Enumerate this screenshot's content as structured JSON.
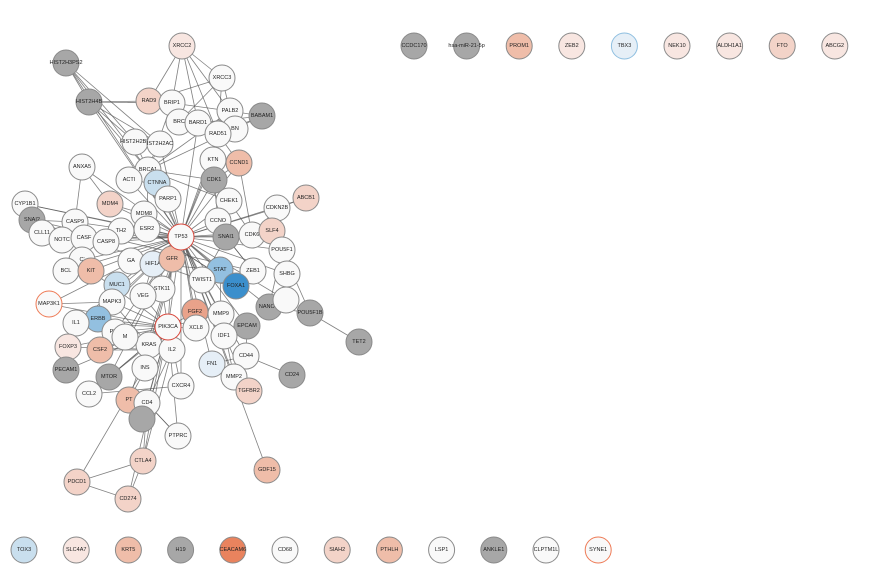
{
  "colors": {
    "blue_dark": "#3b8fcc",
    "blue_mid": "#93c0e0",
    "blue_light": "#c9dfee",
    "blue_pale": "#e6eff7",
    "white": "#f9f9f9",
    "pink_pale": "#f8e6e1",
    "pink_light": "#f3d3c8",
    "salmon": "#efbda9",
    "salmon_dark": "#e9a28a",
    "orange": "#e9835e",
    "gray": "#a7a7a7",
    "stroke_default": "#8a8a8a",
    "stroke_highlight": "#d8463a",
    "stroke_orange": "#ee7a55",
    "stroke_blue": "#8fbfe0"
  },
  "nodes": [
    {
      "id": "XRCC2",
      "label": "XRCC2",
      "fill": "pink_pale"
    },
    {
      "id": "XRCC3",
      "label": "XRCC3",
      "fill": "white"
    },
    {
      "id": "HIST2H3PS2",
      "label": "HIST2H3PS2",
      "fill": "gray"
    },
    {
      "id": "HIST2H4B",
      "label": "HIST2H4B",
      "fill": "gray"
    },
    {
      "id": "RAD9",
      "label": "RAD9",
      "fill": "pink_light"
    },
    {
      "id": "BRIP1",
      "label": "BRIP1",
      "fill": "white"
    },
    {
      "id": "PALB2",
      "label": "PALB2",
      "fill": "white"
    },
    {
      "id": "BABAM1",
      "label": "BABAM1",
      "fill": "gray"
    },
    {
      "id": "BRC",
      "label": "BRC",
      "fill": "white"
    },
    {
      "id": "BARD1",
      "label": "BARD1",
      "fill": "white"
    },
    {
      "id": "BN",
      "label": "BN",
      "fill": "white"
    },
    {
      "id": "RAD51",
      "label": "RAD51",
      "fill": "white"
    },
    {
      "id": "HIST2H2BE",
      "label": "HIST2H2BE",
      "fill": "white"
    },
    {
      "id": "HIST2H2AC",
      "label": "IST2H2AC",
      "fill": "white"
    },
    {
      "id": "CCND1",
      "label": "CCND1",
      "fill": "salmon"
    },
    {
      "id": "ANXA5",
      "label": "ANXA5",
      "fill": "white"
    },
    {
      "id": "BRCA1",
      "label": "BRCA1",
      "fill": "white"
    },
    {
      "id": "KTN",
      "label": "KTN",
      "fill": "white"
    },
    {
      "id": "ACTI",
      "label": "ACTI",
      "fill": "white"
    },
    {
      "id": "CTNNA",
      "label": "CTNNA",
      "fill": "blue_light"
    },
    {
      "id": "CDK1",
      "label": "CDK1",
      "fill": "gray"
    },
    {
      "id": "ABCB1",
      "label": "ABCB1",
      "fill": "pink_light"
    },
    {
      "id": "CYP1B1",
      "label": "CYP1B1",
      "fill": "white"
    },
    {
      "id": "SNAI2",
      "label": "SNAI2",
      "fill": "gray"
    },
    {
      "id": "MDM4",
      "label": "MDM4",
      "fill": "pink_light"
    },
    {
      "id": "PARP1",
      "label": "PARP1",
      "fill": "white"
    },
    {
      "id": "CHEK1",
      "label": "CHEK1",
      "fill": "white"
    },
    {
      "id": "CDKN2B",
      "label": "CDKN2B",
      "fill": "white"
    },
    {
      "id": "CASP9",
      "label": "CASP9",
      "fill": "white"
    },
    {
      "id": "MDM8",
      "label": "MDM8",
      "fill": "white"
    },
    {
      "id": "CCNO",
      "label": "CCNO",
      "fill": "white"
    },
    {
      "id": "CLL11",
      "label": "CLL11",
      "fill": "white"
    },
    {
      "id": "NOTC",
      "label": "NOTC",
      "fill": "white"
    },
    {
      "id": "CASF",
      "label": "CASF",
      "fill": "white"
    },
    {
      "id": "TH2",
      "label": "TH2",
      "fill": "white"
    },
    {
      "id": "ESR2",
      "label": "ESR2",
      "fill": "white"
    },
    {
      "id": "TP53",
      "label": "TP53",
      "fill": "white",
      "stroke": "stroke_highlight",
      "thick": true
    },
    {
      "id": "SNAI1",
      "label": "SNAI1",
      "fill": "gray"
    },
    {
      "id": "CDK6",
      "label": "CDK6",
      "fill": "white"
    },
    {
      "id": "SLF4",
      "label": "SLF4",
      "fill": "pink_light"
    },
    {
      "id": "POU5F1",
      "label": "POU5F1",
      "fill": "white"
    },
    {
      "id": "CASP8",
      "label": "CASP8",
      "fill": "white"
    },
    {
      "id": "C1",
      "label": "C'",
      "fill": "white"
    },
    {
      "id": "BCL",
      "label": "BCL",
      "fill": "white"
    },
    {
      "id": "GA",
      "label": "GA",
      "fill": "white"
    },
    {
      "id": "HIF1A",
      "label": "HIF1A",
      "fill": "blue_pale"
    },
    {
      "id": "GFR",
      "label": "GFR",
      "fill": "salmon"
    },
    {
      "id": "STAT",
      "label": "STAT",
      "fill": "blue_mid"
    },
    {
      "id": "ZEB1",
      "label": "ZEB1",
      "fill": "white"
    },
    {
      "id": "SHBG",
      "label": "SHBG",
      "fill": "white"
    },
    {
      "id": "KIT",
      "label": "KIT",
      "fill": "salmon"
    },
    {
      "id": "MUC1",
      "label": "MUC1",
      "fill": "blue_light"
    },
    {
      "id": "TWIST1",
      "label": "TWIST1",
      "fill": "white"
    },
    {
      "id": "FOXA1",
      "label": "FOXA1",
      "fill": "blue_dark"
    },
    {
      "id": "STK11",
      "label": "STK11",
      "fill": "white"
    },
    {
      "id": "MAPK3",
      "label": "MAPK3",
      "fill": "white"
    },
    {
      "id": "VEG",
      "label": "VEG",
      "fill": "white"
    },
    {
      "id": "MAP3K1",
      "label": "MAP3K1",
      "fill": "white",
      "stroke": "stroke_orange",
      "thick": true
    },
    {
      "id": "NANOG",
      "label": "NANOG",
      "fill": "gray"
    },
    {
      "id": "POU5F1B",
      "label": "POU5F1B",
      "fill": "gray"
    },
    {
      "id": "ERBB",
      "label": "ERBB",
      "fill": "blue_mid"
    },
    {
      "id": "FGF2",
      "label": "FGF2",
      "fill": "salmon_dark"
    },
    {
      "id": "MMP9",
      "label": "MMP9",
      "fill": "white"
    },
    {
      "id": "IL1",
      "label": "IL1",
      "fill": "white"
    },
    {
      "id": "PIK3CA",
      "label": "PIK3CA",
      "fill": "white",
      "stroke": "stroke_highlight",
      "thick": true
    },
    {
      "id": "CXCL8",
      "label": "XCL8",
      "fill": "white"
    },
    {
      "id": "EPCAM",
      "label": "EPCAM",
      "fill": "gray"
    },
    {
      "id": "TET2",
      "label": "TET2",
      "fill": "gray"
    },
    {
      "id": "PTK",
      "label": "PTK",
      "fill": "white"
    },
    {
      "id": "IDF1",
      "label": "IDF1",
      "fill": "white"
    },
    {
      "id": "FOXP3",
      "label": "FOXP3",
      "fill": "pink_pale"
    },
    {
      "id": "CSF2",
      "label": "CSF2",
      "fill": "salmon"
    },
    {
      "id": "KRAS",
      "label": "KRAS",
      "fill": "white"
    },
    {
      "id": "IL2",
      "label": "IL2",
      "fill": "white"
    },
    {
      "id": "FN1",
      "label": "FN1",
      "fill": "blue_pale"
    },
    {
      "id": "CD44",
      "label": "CD44",
      "fill": "white"
    },
    {
      "id": "MMP2",
      "label": "MMP2",
      "fill": "white"
    },
    {
      "id": "CD24",
      "label": "CD24",
      "fill": "gray"
    },
    {
      "id": "PECAM1",
      "label": "PECAM1",
      "fill": "gray"
    },
    {
      "id": "MTOR",
      "label": "MTOR",
      "fill": "gray"
    },
    {
      "id": "INS",
      "label": "INS",
      "fill": "white"
    },
    {
      "id": "CXCR4",
      "label": "CXCR4",
      "fill": "white"
    },
    {
      "id": "TGFBR2",
      "label": "TGFBR2",
      "fill": "pink_light"
    },
    {
      "id": "CCL2",
      "label": "CCL2",
      "fill": "white"
    },
    {
      "id": "PTEN",
      "label": "PT",
      "fill": "salmon"
    },
    {
      "id": "CD4",
      "label": "CD4",
      "fill": "white"
    },
    {
      "id": "GRAY_LOW",
      "label": "",
      "fill": "gray"
    },
    {
      "id": "PTPRC",
      "label": "PTPRC",
      "fill": "white"
    },
    {
      "id": "CTLA4",
      "label": "CTLA4",
      "fill": "pink_light"
    },
    {
      "id": "GDF15",
      "label": "GDF15",
      "fill": "salmon"
    },
    {
      "id": "PDCD1",
      "label": "PDCD1",
      "fill": "pink_light"
    },
    {
      "id": "CD274",
      "label": "CD274",
      "fill": "pink_light"
    },
    {
      "id": "M2",
      "label": "M",
      "fill": "white"
    },
    {
      "id": "SG",
      "label": "",
      "fill": "white"
    }
  ],
  "edges": [
    [
      "XRCC2",
      "XRCC3"
    ],
    [
      "XRCC2",
      "RAD9"
    ],
    [
      "XRCC2",
      "BRIP1"
    ],
    [
      "XRCC2",
      "PALB2"
    ],
    [
      "XRCC2",
      "BARD1"
    ],
    [
      "XRCC2",
      "RAD51"
    ],
    [
      "XRCC3",
      "RAD9"
    ],
    [
      "XRCC3",
      "PALB2"
    ],
    [
      "XRCC3",
      "RAD51"
    ],
    [
      "XRCC3",
      "BRC"
    ],
    [
      "HIST2H3PS2",
      "HIST2H4B"
    ],
    [
      "HIST2H3PS2",
      "HIST2H2BE"
    ],
    [
      "HIST2H3PS2",
      "BRCA1"
    ],
    [
      "HIST2H3PS2",
      "TP53"
    ],
    [
      "HIST2H3PS2",
      "HIST2H2AC"
    ],
    [
      "HIST2H4B",
      "HIST2H2BE"
    ],
    [
      "HIST2H4B",
      "BRCA1"
    ],
    [
      "HIST2H4B",
      "HIST2H2AC"
    ],
    [
      "HIST2H4B",
      "RAD9"
    ],
    [
      "HIST2H4B",
      "BRIP1"
    ],
    [
      "HIST2H4B",
      "TP53"
    ],
    [
      "RAD9",
      "BRIP1"
    ],
    [
      "RAD9",
      "BRC"
    ],
    [
      "BRIP1",
      "PALB2"
    ],
    [
      "BRIP1",
      "BARD1"
    ],
    [
      "BRIP1",
      "RAD51"
    ],
    [
      "BRIP1",
      "BRCA1"
    ],
    [
      "PALB2",
      "BABAM1"
    ],
    [
      "PALB2",
      "RAD51"
    ],
    [
      "PALB2",
      "BN"
    ],
    [
      "PALB2",
      "BRCA1"
    ],
    [
      "PALB2",
      "TP53"
    ],
    [
      "BABAM1",
      "BARD1"
    ],
    [
      "BABAM1",
      "BRCA1"
    ],
    [
      "BABAM1",
      "RAD51"
    ],
    [
      "BRC",
      "BARD1"
    ],
    [
      "BRC",
      "RAD51"
    ],
    [
      "BARD1",
      "RAD51"
    ],
    [
      "BARD1",
      "BN"
    ],
    [
      "BARD1",
      "TP53"
    ],
    [
      "RAD51",
      "TP53"
    ],
    [
      "RAD51",
      "CDK1"
    ],
    [
      "RAD51",
      "CCND1"
    ],
    [
      "HIST2H2BE",
      "HIST2H2AC"
    ],
    [
      "HIST2H2BE",
      "BRCA1"
    ],
    [
      "HIST2H2AC",
      "BRCA1"
    ],
    [
      "HIST2H2AC",
      "TP53"
    ],
    [
      "BRCA1",
      "TP53"
    ],
    [
      "BRCA1",
      "PARP1"
    ],
    [
      "BRCA1",
      "ESR2"
    ],
    [
      "BRCA1",
      "CHEK1"
    ],
    [
      "BRCA1",
      "CDK1"
    ],
    [
      "BRCA1",
      "ACTI"
    ],
    [
      "ANXA5",
      "CASP9"
    ],
    [
      "ANXA5",
      "TP53"
    ],
    [
      "ANXA5",
      "MDM4"
    ],
    [
      "KTN",
      "TP53"
    ],
    [
      "KTN",
      "CDK1"
    ],
    [
      "CTNNA",
      "TP53"
    ],
    [
      "ACTI",
      "TP53"
    ],
    [
      "ACTI",
      "CTNNA"
    ],
    [
      "CCND1",
      "TP53"
    ],
    [
      "CCND1",
      "CDK6"
    ],
    [
      "CCND1",
      "CDK1"
    ],
    [
      "CDK1",
      "CHEK1"
    ],
    [
      "CDK1",
      "TP53"
    ],
    [
      "CDK1",
      "CCNO"
    ],
    [
      "ABCB1",
      "TP53"
    ],
    [
      "ABCB1",
      "CDKN2B"
    ],
    [
      "CDKN2B",
      "CDK6"
    ],
    [
      "CDKN2B",
      "TP53"
    ],
    [
      "CHEK1",
      "TP53"
    ],
    [
      "CHEK1",
      "CDK6"
    ],
    [
      "CYP1B1",
      "TP53"
    ],
    [
      "CYP1B1",
      "ESR2"
    ],
    [
      "SNAI2",
      "CASP9"
    ],
    [
      "SNAI2",
      "TWIST1"
    ],
    [
      "SNAI2",
      "ZEB1"
    ],
    [
      "MDM4",
      "TP53"
    ],
    [
      "MDM4",
      "MDM8"
    ],
    [
      "PARP1",
      "TP53"
    ],
    [
      "CASP9",
      "TP53"
    ],
    [
      "CASP9",
      "CASP8"
    ],
    [
      "MDM8",
      "TP53"
    ],
    [
      "CCNO",
      "TP53"
    ],
    [
      "CLL11",
      "TP53"
    ],
    [
      "NOTC",
      "TP53"
    ],
    [
      "CASF",
      "TP53"
    ],
    [
      "TH2",
      "TP53"
    ],
    [
      "ESR2",
      "TP53"
    ],
    [
      "ESR2",
      "FOXA1"
    ],
    [
      "SNAI1",
      "TP53"
    ],
    [
      "SNAI1",
      "ZEB1"
    ],
    [
      "SNAI1",
      "TWIST1"
    ],
    [
      "CDK6",
      "TP53"
    ],
    [
      "SLF4",
      "TP53"
    ],
    [
      "SLF4",
      "POU5F1"
    ],
    [
      "POU5F1",
      "NANOG"
    ],
    [
      "POU5F1",
      "TP53"
    ],
    [
      "POU5F1",
      "SHBG"
    ],
    [
      "CASP8",
      "TP53"
    ],
    [
      "C1",
      "TP53"
    ],
    [
      "BCL",
      "TP53"
    ],
    [
      "GA",
      "TP53"
    ],
    [
      "HIF1A",
      "TP53"
    ],
    [
      "HIF1A",
      "VEG"
    ],
    [
      "HIF1A",
      "STAT"
    ],
    [
      "GFR",
      "TP53"
    ],
    [
      "GFR",
      "PIK3CA"
    ],
    [
      "STAT",
      "TP53"
    ],
    [
      "STAT",
      "FOXA1"
    ],
    [
      "ZEB1",
      "TWIST1"
    ],
    [
      "ZEB1",
      "SNAI1"
    ],
    [
      "SHBG",
      "TP53"
    ],
    [
      "KIT",
      "TP53"
    ],
    [
      "KIT",
      "PIK3CA"
    ],
    [
      "MUC1",
      "TP53"
    ],
    [
      "MUC1",
      "ERBB"
    ],
    [
      "TWIST1",
      "TP53"
    ],
    [
      "TWIST1",
      "MMP9"
    ],
    [
      "FOXA1",
      "TP53"
    ],
    [
      "FOXA1",
      "ESR2"
    ],
    [
      "STK11",
      "TP53"
    ],
    [
      "STK11",
      "PIK3CA"
    ],
    [
      "MAPK3",
      "TP53"
    ],
    [
      "MAPK3",
      "PIK3CA"
    ],
    [
      "VEG",
      "TP53"
    ],
    [
      "VEG",
      "PIK3CA"
    ],
    [
      "MAP3K1",
      "TP53"
    ],
    [
      "MAP3K1",
      "MAPK3"
    ],
    [
      "MAP3K1",
      "PIK3CA"
    ],
    [
      "NANOG",
      "POU5F1B"
    ],
    [
      "NANOG",
      "TP53"
    ],
    [
      "POU5F1B",
      "TET2"
    ],
    [
      "POU5F1B",
      "POU5F1"
    ],
    [
      "ERBB",
      "PIK3CA"
    ],
    [
      "ERBB",
      "TP53"
    ],
    [
      "FGF2",
      "PIK3CA"
    ],
    [
      "FGF2",
      "TP53"
    ],
    [
      "MMP9",
      "TP53"
    ],
    [
      "MMP9",
      "PIK3CA"
    ],
    [
      "IL1",
      "TP53"
    ],
    [
      "IL1",
      "PIK3CA"
    ],
    [
      "PIK3CA",
      "TP53"
    ],
    [
      "PIK3CA",
      "KRAS"
    ],
    [
      "PIK3CA",
      "MTOR"
    ],
    [
      "PIK3CA",
      "PTEN"
    ],
    [
      "PIK3CA",
      "CXCL8"
    ],
    [
      "CXCL8",
      "TP53"
    ],
    [
      "EPCAM",
      "TP53"
    ],
    [
      "EPCAM",
      "CD44"
    ],
    [
      "PTK",
      "PIK3CA"
    ],
    [
      "PTK",
      "TP53"
    ],
    [
      "IDF1",
      "TP53"
    ],
    [
      "FOXP3",
      "PIK3CA"
    ],
    [
      "FOXP3",
      "IL2"
    ],
    [
      "CSF2",
      "PIK3CA"
    ],
    [
      "CSF2",
      "IL2"
    ],
    [
      "KRAS",
      "TP53"
    ],
    [
      "KRAS",
      "MTOR"
    ],
    [
      "IL2",
      "PIK3CA"
    ],
    [
      "IL2",
      "CD4"
    ],
    [
      "FN1",
      "TP53"
    ],
    [
      "FN1",
      "CD44"
    ],
    [
      "CD44",
      "MMP9"
    ],
    [
      "MMP2",
      "MMP9"
    ],
    [
      "MMP2",
      "TP53"
    ],
    [
      "MMP2",
      "TGFBR2"
    ],
    [
      "CD24",
      "CD44"
    ],
    [
      "PECAM1",
      "PIK3CA"
    ],
    [
      "MTOR",
      "TP53"
    ],
    [
      "INS",
      "PIK3CA"
    ],
    [
      "INS",
      "TP53"
    ],
    [
      "CXCR4",
      "PIK3CA"
    ],
    [
      "CXCR4",
      "TP53"
    ],
    [
      "TGFBR2",
      "TP53"
    ],
    [
      "CCL2",
      "PIK3CA"
    ],
    [
      "CCL2",
      "CXCR4"
    ],
    [
      "PTEN",
      "TP53"
    ],
    [
      "CD4",
      "PIK3CA"
    ],
    [
      "CD4",
      "PTPRC"
    ],
    [
      "CD4",
      "CTLA4"
    ],
    [
      "GRAY_LOW",
      "PIK3CA"
    ],
    [
      "PTPRC",
      "CD4"
    ],
    [
      "PTPRC",
      "PIK3CA"
    ],
    [
      "CTLA4",
      "CD274"
    ],
    [
      "CTLA4",
      "PDCD1"
    ],
    [
      "CTLA4",
      "PIK3CA"
    ],
    [
      "GDF15",
      "TP53"
    ],
    [
      "PDCD1",
      "CD274"
    ],
    [
      "PDCD1",
      "PIK3CA"
    ],
    [
      "CD274",
      "PIK3CA"
    ],
    [
      "M2",
      "TP53"
    ],
    [
      "SG",
      "TP53"
    ],
    [
      "IL2",
      "CTLA4"
    ],
    [
      "MAPK3",
      "KRAS"
    ],
    [
      "HIF1A",
      "STK11"
    ],
    [
      "TWIST1",
      "FOXA1"
    ],
    [
      "STAT",
      "MMP9"
    ]
  ],
  "top_row": [
    {
      "id": "CCDC170",
      "label": "CCDC170",
      "fill": "gray"
    },
    {
      "id": "hsa-miR-21-5p",
      "label": "hsa-miR-21-5p",
      "fill": "gray"
    },
    {
      "id": "PROM1",
      "label": "PROM1",
      "fill": "salmon"
    },
    {
      "id": "ZEB2",
      "label": "ZEB2",
      "fill": "pink_pale"
    },
    {
      "id": "TBX3",
      "label": "TBX3",
      "fill": "blue_pale",
      "stroke": "stroke_blue"
    },
    {
      "id": "NEK10",
      "label": "NEK10",
      "fill": "pink_pale"
    },
    {
      "id": "ALDH1A1",
      "label": "ALDH1A1",
      "fill": "pink_pale"
    },
    {
      "id": "FTO",
      "label": "FTO",
      "fill": "pink_light"
    },
    {
      "id": "ABCG2",
      "label": "ABCG2",
      "fill": "pink_pale"
    }
  ],
  "bottom_row": [
    {
      "id": "TOX3",
      "label": "TOX3",
      "fill": "blue_light"
    },
    {
      "id": "SLC4A7",
      "label": "SLC4A7",
      "fill": "pink_pale"
    },
    {
      "id": "KRT5",
      "label": "KRT5",
      "fill": "salmon"
    },
    {
      "id": "H19",
      "label": "H19",
      "fill": "gray"
    },
    {
      "id": "CEACAM6",
      "label": "CEACAM6",
      "fill": "orange"
    },
    {
      "id": "CD68",
      "label": "CD68",
      "fill": "white"
    },
    {
      "id": "SIAH2",
      "label": "SIAH2",
      "fill": "pink_light"
    },
    {
      "id": "PTHLH",
      "label": "PTHLH",
      "fill": "salmon"
    },
    {
      "id": "LSP1",
      "label": "LSP1",
      "fill": "white"
    },
    {
      "id": "ANKLE1",
      "label": "ANKLE1",
      "fill": "gray"
    },
    {
      "id": "CLPTM1L",
      "label": "CLPTM1L",
      "fill": "white"
    },
    {
      "id": "SYNE1",
      "label": "SYNE1",
      "fill": "white",
      "stroke": "stroke_orange"
    }
  ]
}
